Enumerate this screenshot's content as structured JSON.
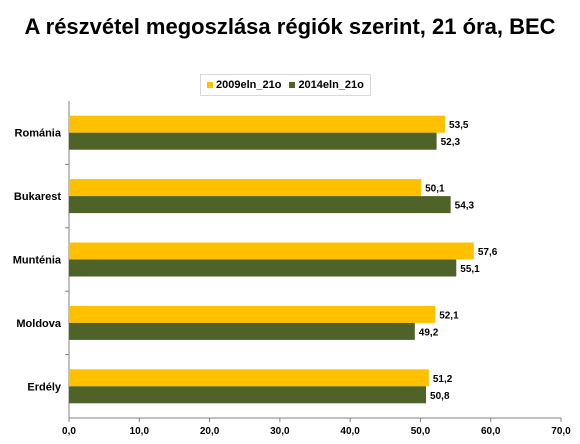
{
  "chart_data": {
    "type": "bar",
    "orientation": "horizontal",
    "title": "A részvétel megoszlása régiók szerint, 21 óra, BEC",
    "categories": [
      "Románia",
      "Bukarest",
      "Munténia",
      "Moldova",
      "Erdély"
    ],
    "series": [
      {
        "name": "2009eln_21o",
        "color": "#ffc000",
        "values": [
          53.5,
          50.1,
          57.6,
          52.1,
          51.2
        ]
      },
      {
        "name": "2014eln_21o",
        "color": "#4f6228",
        "values": [
          52.3,
          54.3,
          55.1,
          49.2,
          50.8
        ]
      }
    ],
    "xlim": [
      0,
      70
    ],
    "xticks": [
      "0,0",
      "10,0",
      "20,0",
      "30,0",
      "40,0",
      "50,0",
      "60,0",
      "70,0"
    ],
    "legend_position": "top",
    "grid": false
  }
}
